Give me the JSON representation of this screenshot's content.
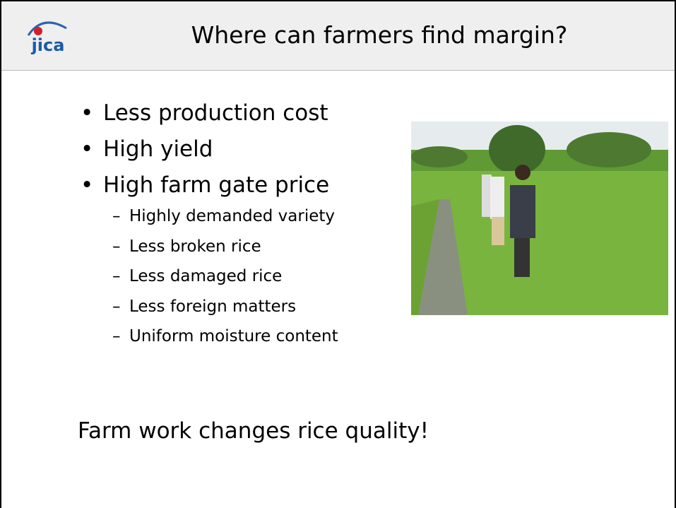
{
  "header": {
    "logo": "JICA",
    "title": "Where can farmers find margin?"
  },
  "bullets": [
    {
      "text": "Less production cost"
    },
    {
      "text": "High yield"
    },
    {
      "text": "High farm gate price",
      "sub": [
        "Highly demanded variety",
        "Less broken rice",
        "Less damaged rice",
        "Less foreign matters",
        "Uniform moisture content"
      ]
    }
  ],
  "conclusion": "Farm work changes rice quality!"
}
